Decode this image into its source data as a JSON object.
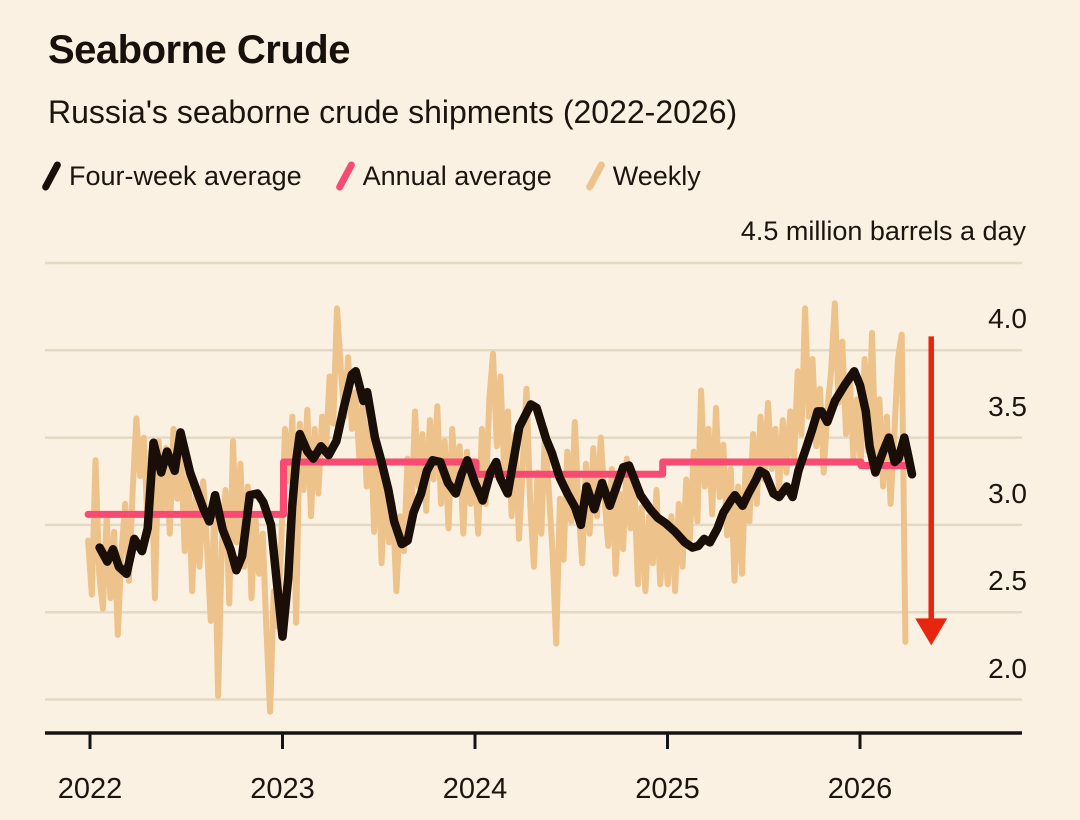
{
  "header": {
    "title": "Seaborne Crude",
    "subtitle": "Russia's seaborne crude shipments (2022-2026)"
  },
  "legend": [
    {
      "label": "Four-week average",
      "color": "#1A0E08"
    },
    {
      "label": "Annual average",
      "color": "#F74B73"
    },
    {
      "label": "Weekly",
      "color": "#EDC28B"
    }
  ],
  "chart_data": {
    "type": "line",
    "title": "Seaborne Crude",
    "subtitle": "Russia's seaborne crude shipments (2022-2026)",
    "unit_label": "4.5 million barrels a day",
    "xlabel": "",
    "ylabel": "million barrels a day",
    "x_domain": [
      2021.99,
      2026.4
    ],
    "y_domain": [
      2.0,
      4.5
    ],
    "grid": true,
    "legend_position": "top",
    "x_axis": {
      "ticks": [
        {
          "year": 2022,
          "label": "2022"
        },
        {
          "year": 2023,
          "label": "2023"
        },
        {
          "year": 2024,
          "label": "2024"
        },
        {
          "year": 2025,
          "label": "2025"
        },
        {
          "year": 2026,
          "label": "2026"
        }
      ]
    },
    "y_axis": {
      "gridline_values": [
        4.5,
        4.0,
        3.5,
        3.0,
        2.5,
        2.0
      ],
      "tick_labels": [
        {
          "value": 4.0,
          "label": "4.0"
        },
        {
          "value": 3.5,
          "label": "3.5"
        },
        {
          "value": 3.0,
          "label": "3.0"
        },
        {
          "value": 2.5,
          "label": "2.5"
        },
        {
          "value": 2.0,
          "label": "2.0"
        }
      ]
    },
    "colors": {
      "background": "#FBF1E2",
      "four_week_average": "#1A0E08",
      "annual_average": "#F74B73",
      "weekly": "#EDC28B",
      "arrow": "#E8250F",
      "gridline": "#E3D9C5",
      "axis": "#141414",
      "text": "#1C150F"
    },
    "annotation_arrow": {
      "x": 2026.37,
      "value_top": 4.08,
      "value_bottom": 2.31
    },
    "series": {
      "annual_average": {
        "name": "Annual average",
        "segments": [
          {
            "from": 2021.99,
            "to": 2023.005,
            "value": 3.06
          },
          {
            "from": 2023.005,
            "to": 2024.005,
            "value": 3.36
          },
          {
            "from": 2024.005,
            "to": 2024.975,
            "value": 3.29
          },
          {
            "from": 2024.975,
            "to": 2026.005,
            "value": 3.36
          },
          {
            "from": 2026.005,
            "to": 2026.24,
            "value": 3.34
          }
        ]
      },
      "four_week_average": {
        "name": "Four-week average",
        "points": [
          [
            2022.05,
            2.87
          ],
          [
            2022.09,
            2.79
          ],
          [
            2022.12,
            2.86
          ],
          [
            2022.15,
            2.76
          ],
          [
            2022.19,
            2.72
          ],
          [
            2022.23,
            2.92
          ],
          [
            2022.27,
            2.85
          ],
          [
            2022.3,
            2.98
          ],
          [
            2022.33,
            3.47
          ],
          [
            2022.37,
            3.3
          ],
          [
            2022.4,
            3.42
          ],
          [
            2022.44,
            3.31
          ],
          [
            2022.47,
            3.53
          ],
          [
            2022.52,
            3.3
          ],
          [
            2022.56,
            3.18
          ],
          [
            2022.59,
            3.09
          ],
          [
            2022.62,
            3.02
          ],
          [
            2022.65,
            3.17
          ],
          [
            2022.69,
            2.97
          ],
          [
            2022.73,
            2.86
          ],
          [
            2022.76,
            2.74
          ],
          [
            2022.79,
            2.82
          ],
          [
            2022.83,
            3.17
          ],
          [
            2022.87,
            3.18
          ],
          [
            2022.9,
            3.13
          ],
          [
            2022.94,
            3.0
          ],
          [
            2022.97,
            2.68
          ],
          [
            2023.0,
            2.36
          ],
          [
            2023.03,
            2.7
          ],
          [
            2023.05,
            3.1
          ],
          [
            2023.07,
            3.36
          ],
          [
            2023.09,
            3.52
          ],
          [
            2023.13,
            3.42
          ],
          [
            2023.16,
            3.38
          ],
          [
            2023.2,
            3.45
          ],
          [
            2023.24,
            3.4
          ],
          [
            2023.28,
            3.48
          ],
          [
            2023.32,
            3.68
          ],
          [
            2023.36,
            3.86
          ],
          [
            2023.38,
            3.88
          ],
          [
            2023.42,
            3.71
          ],
          [
            2023.44,
            3.76
          ],
          [
            2023.48,
            3.5
          ],
          [
            2023.51,
            3.38
          ],
          [
            2023.55,
            3.2
          ],
          [
            2023.58,
            3.02
          ],
          [
            2023.62,
            2.89
          ],
          [
            2023.65,
            2.91
          ],
          [
            2023.68,
            3.07
          ],
          [
            2023.72,
            3.18
          ],
          [
            2023.75,
            3.31
          ],
          [
            2023.78,
            3.37
          ],
          [
            2023.82,
            3.36
          ],
          [
            2023.86,
            3.24
          ],
          [
            2023.9,
            3.18
          ],
          [
            2023.93,
            3.29
          ],
          [
            2023.96,
            3.37
          ],
          [
            2024.0,
            3.24
          ],
          [
            2024.04,
            3.14
          ],
          [
            2024.08,
            3.3
          ],
          [
            2024.11,
            3.36
          ],
          [
            2024.13,
            3.27
          ],
          [
            2024.17,
            3.18
          ],
          [
            2024.23,
            3.56
          ],
          [
            2024.29,
            3.69
          ],
          [
            2024.32,
            3.67
          ],
          [
            2024.37,
            3.49
          ],
          [
            2024.4,
            3.41
          ],
          [
            2024.44,
            3.27
          ],
          [
            2024.48,
            3.18
          ],
          [
            2024.52,
            3.1
          ],
          [
            2024.55,
            3.0
          ],
          [
            2024.58,
            3.22
          ],
          [
            2024.62,
            3.09
          ],
          [
            2024.66,
            3.24
          ],
          [
            2024.7,
            3.11
          ],
          [
            2024.77,
            3.33
          ],
          [
            2024.8,
            3.34
          ],
          [
            2024.86,
            3.17
          ],
          [
            2024.91,
            3.09
          ],
          [
            2024.95,
            3.04
          ],
          [
            2024.99,
            3.01
          ],
          [
            2025.04,
            2.96
          ],
          [
            2025.09,
            2.9
          ],
          [
            2025.13,
            2.87
          ],
          [
            2025.16,
            2.88
          ],
          [
            2025.19,
            2.92
          ],
          [
            2025.22,
            2.9
          ],
          [
            2025.26,
            2.98
          ],
          [
            2025.29,
            3.07
          ],
          [
            2025.33,
            3.14
          ],
          [
            2025.35,
            3.17
          ],
          [
            2025.39,
            3.11
          ],
          [
            2025.42,
            3.18
          ],
          [
            2025.46,
            3.26
          ],
          [
            2025.48,
            3.31
          ],
          [
            2025.51,
            3.29
          ],
          [
            2025.55,
            3.18
          ],
          [
            2025.58,
            3.16
          ],
          [
            2025.62,
            3.22
          ],
          [
            2025.65,
            3.16
          ],
          [
            2025.68,
            3.31
          ],
          [
            2025.72,
            3.44
          ],
          [
            2025.75,
            3.54
          ],
          [
            2025.78,
            3.65
          ],
          [
            2025.8,
            3.65
          ],
          [
            2025.83,
            3.59
          ],
          [
            2025.87,
            3.71
          ],
          [
            2025.92,
            3.8
          ],
          [
            2025.97,
            3.88
          ],
          [
            2026.0,
            3.8
          ],
          [
            2026.03,
            3.65
          ],
          [
            2026.05,
            3.45
          ],
          [
            2026.08,
            3.3
          ],
          [
            2026.12,
            3.42
          ],
          [
            2026.15,
            3.5
          ],
          [
            2026.18,
            3.36
          ],
          [
            2026.2,
            3.38
          ],
          [
            2026.23,
            3.5
          ],
          [
            2026.25,
            3.4
          ],
          [
            2026.27,
            3.29
          ]
        ]
      },
      "weekly": {
        "name": "Weekly",
        "x_start": 2021.99,
        "dx": 0.0193,
        "values": [
          2.91,
          2.6,
          3.37,
          2.72,
          2.52,
          3.05,
          2.58,
          2.96,
          2.37,
          2.85,
          3.12,
          2.68,
          3.2,
          3.61,
          3.28,
          3.5,
          3.02,
          3.42,
          2.58,
          3.48,
          3.08,
          3.44,
          2.95,
          3.55,
          3.15,
          3.42,
          2.85,
          3.3,
          2.62,
          3.18,
          2.76,
          3.25,
          2.88,
          2.45,
          3.1,
          2.02,
          2.88,
          3.2,
          2.55,
          3.48,
          2.9,
          3.35,
          2.76,
          3.22,
          2.58,
          3.05,
          2.72,
          2.95,
          2.4,
          1.93,
          2.62,
          2.42,
          2.9,
          3.55,
          3.25,
          3.62,
          2.44,
          3.58,
          3.2,
          3.66,
          3.05,
          3.55,
          3.18,
          3.62,
          3.42,
          3.85,
          3.58,
          4.24,
          3.9,
          3.62,
          3.96,
          3.55,
          3.76,
          3.38,
          3.7,
          3.22,
          3.6,
          2.96,
          3.45,
          2.78,
          3.3,
          2.9,
          3.12,
          2.62,
          3.05,
          2.85,
          3.38,
          3.02,
          3.65,
          3.22,
          3.52,
          3.08,
          3.6,
          3.26,
          3.68,
          3.12,
          3.48,
          2.98,
          3.55,
          3.22,
          3.45,
          2.95,
          3.42,
          3.12,
          3.32,
          2.95,
          3.55,
          3.12,
          3.72,
          3.98,
          3.45,
          3.85,
          3.3,
          3.65,
          3.05,
          3.52,
          2.92,
          3.35,
          3.78,
          3.12,
          2.76,
          3.3,
          2.95,
          3.55,
          3.2,
          2.85,
          2.32,
          3.15,
          2.8,
          3.42,
          3.02,
          3.59,
          3.1,
          2.78,
          3.35,
          2.95,
          3.44,
          3.05,
          3.5,
          3.15,
          2.88,
          3.32,
          2.72,
          3.18,
          2.86,
          3.38,
          2.98,
          3.26,
          2.66,
          3.1,
          2.62,
          3.05,
          2.78,
          3.2,
          2.66,
          3.0,
          2.66,
          3.05,
          2.62,
          3.12,
          2.76,
          3.26,
          2.92,
          3.42,
          3.02,
          3.77,
          3.22,
          3.55,
          3.06,
          3.67,
          3.16,
          3.46,
          2.94,
          3.32,
          2.68,
          3.22,
          2.72,
          3.36,
          3.02,
          3.52,
          3.12,
          3.62,
          3.26,
          3.7,
          3.32,
          3.55,
          3.2,
          3.6,
          3.3,
          3.65,
          3.38,
          3.88,
          3.52,
          4.24,
          3.62,
          3.95,
          3.45,
          3.78,
          3.3,
          3.66,
          3.88,
          4.27,
          3.7,
          4.05,
          3.52,
          3.86,
          3.38,
          3.72,
          3.35,
          3.95,
          3.42,
          4.1,
          3.38,
          3.72,
          3.22,
          3.62,
          3.12,
          3.52,
          3.95,
          4.09,
          2.33
        ]
      }
    }
  }
}
